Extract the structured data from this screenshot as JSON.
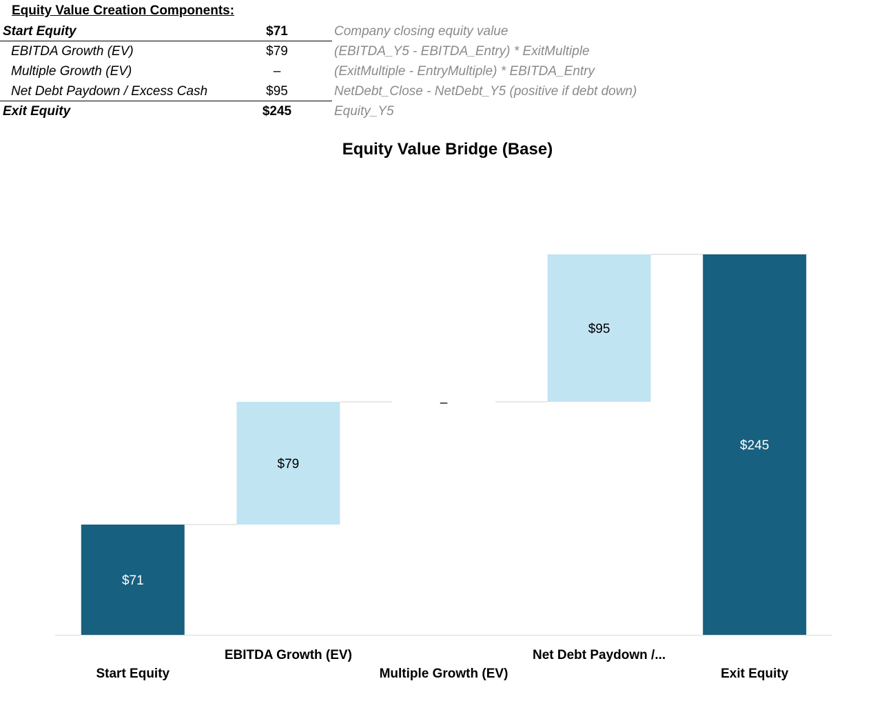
{
  "table": {
    "heading": "Equity Value Creation Components:",
    "rows": [
      {
        "label": "Start Equity",
        "value": "$71",
        "formula": "Company closing equity value"
      },
      {
        "label": "EBITDA Growth (EV)",
        "value": "$79",
        "formula": "(EBITDA_Y5 - EBITDA_Entry) * ExitMultiple"
      },
      {
        "label": "Multiple Growth (EV)",
        "value": "–",
        "formula": "(ExitMultiple - EntryMultiple) * EBITDA_Entry"
      },
      {
        "label": "Net Debt Paydown / Excess Cash",
        "value": "$95",
        "formula": "NetDebt_Close - NetDebt_Y5 (positive if debt down)"
      },
      {
        "label": "Exit Equity",
        "value": "$245",
        "formula": "Equity_Y5"
      }
    ]
  },
  "chart_data": {
    "type": "waterfall",
    "title": "Equity Value Bridge (Base)",
    "categories": [
      "Start Equity",
      "EBITDA Growth (EV)",
      "Multiple Growth (EV)",
      "Net Debt Paydown /...",
      "Exit Equity"
    ],
    "values": [
      71,
      79,
      0,
      95,
      245
    ],
    "kinds": [
      "total",
      "increase",
      "increase",
      "increase",
      "total"
    ],
    "data_labels": [
      "$71",
      "$79",
      "–",
      "$95",
      "$245"
    ],
    "ylim": [
      0,
      245
    ],
    "grid": false,
    "legend": "none",
    "colors": {
      "total": "#18607f",
      "increase": "#c1e4f3",
      "connector": "#d0d0d0",
      "axis": "#d9d9d9"
    }
  }
}
